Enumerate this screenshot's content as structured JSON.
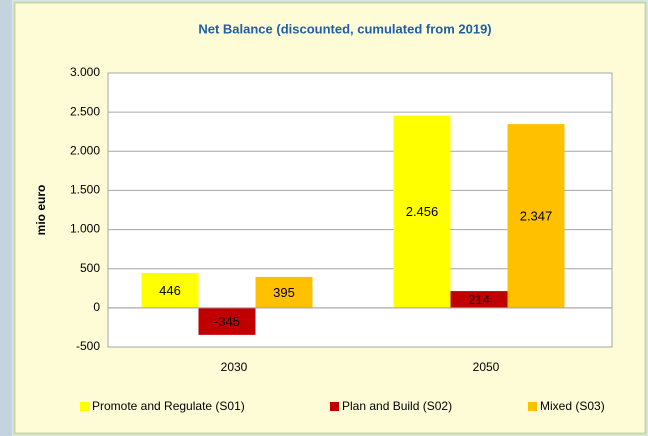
{
  "chart_data": {
    "type": "bar",
    "title": "Net Balance (discounted, cumulated from 2019)",
    "y_label": "mio euro",
    "categories": [
      "2030",
      "2050"
    ],
    "series": [
      {
        "name": "Promote and Regulate (S01)",
        "color": "#ffff00",
        "values": [
          446,
          2456
        ],
        "value_labels": [
          "446",
          "2.456"
        ]
      },
      {
        "name": "Plan and Build (S02)",
        "color": "#c00000",
        "values": [
          -345,
          214
        ],
        "value_labels": [
          "-345",
          "214"
        ]
      },
      {
        "name": "Mixed (S03)",
        "color": "#ffc000",
        "values": [
          395,
          2347
        ],
        "value_labels": [
          "395",
          "2.347"
        ]
      }
    ],
    "ylim": [
      -500,
      3000
    ],
    "yticks": [
      -500,
      0,
      500,
      {
        "value": 1000,
        "label": "1.000"
      },
      {
        "value": 1500,
        "label": "1.500"
      },
      {
        "value": 2000,
        "label": "2.000"
      },
      {
        "value": 2500,
        "label": "2.500"
      },
      {
        "value": 3000,
        "label": "3.000"
      }
    ],
    "grid": true,
    "legend": "bottom"
  }
}
